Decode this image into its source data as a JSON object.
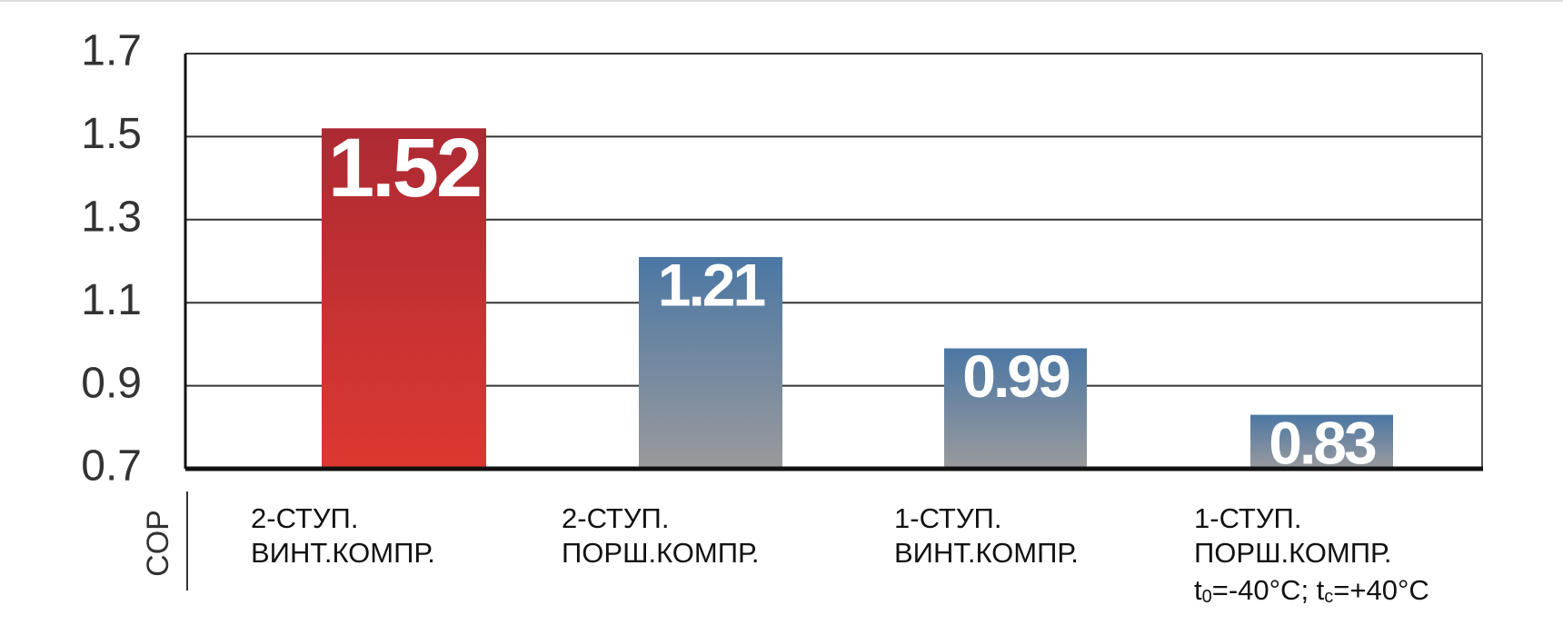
{
  "chart_data": {
    "type": "bar",
    "y_label": "COP",
    "categories": [
      [
        "2-СТУП.",
        "ВИНТ.КОМПР."
      ],
      [
        "2-СТУП.",
        "ПОРШ.КОМПР."
      ],
      [
        "1-СТУП.",
        "ВИНТ.КОМПР."
      ],
      [
        "1-СТУП.",
        "ПОРШ.КОМПР."
      ]
    ],
    "annotation": [
      "t",
      "0",
      "=-40°C; t",
      "c",
      "=+40°C"
    ],
    "values": [
      1.52,
      1.21,
      0.99,
      0.83
    ],
    "bar_gradients": [
      [
        "#ad2a33",
        "#dd3831"
      ],
      [
        "#4b77a4",
        "#9a9a9c"
      ],
      [
        "#4b77a4",
        "#9a9a9c"
      ],
      [
        "#4b77a4",
        "#9a9a9c"
      ]
    ],
    "ylim": [
      0.7,
      1.7
    ],
    "yticks": [
      0.7,
      0.9,
      1.1,
      1.3,
      1.5,
      1.7
    ],
    "grid": true
  }
}
